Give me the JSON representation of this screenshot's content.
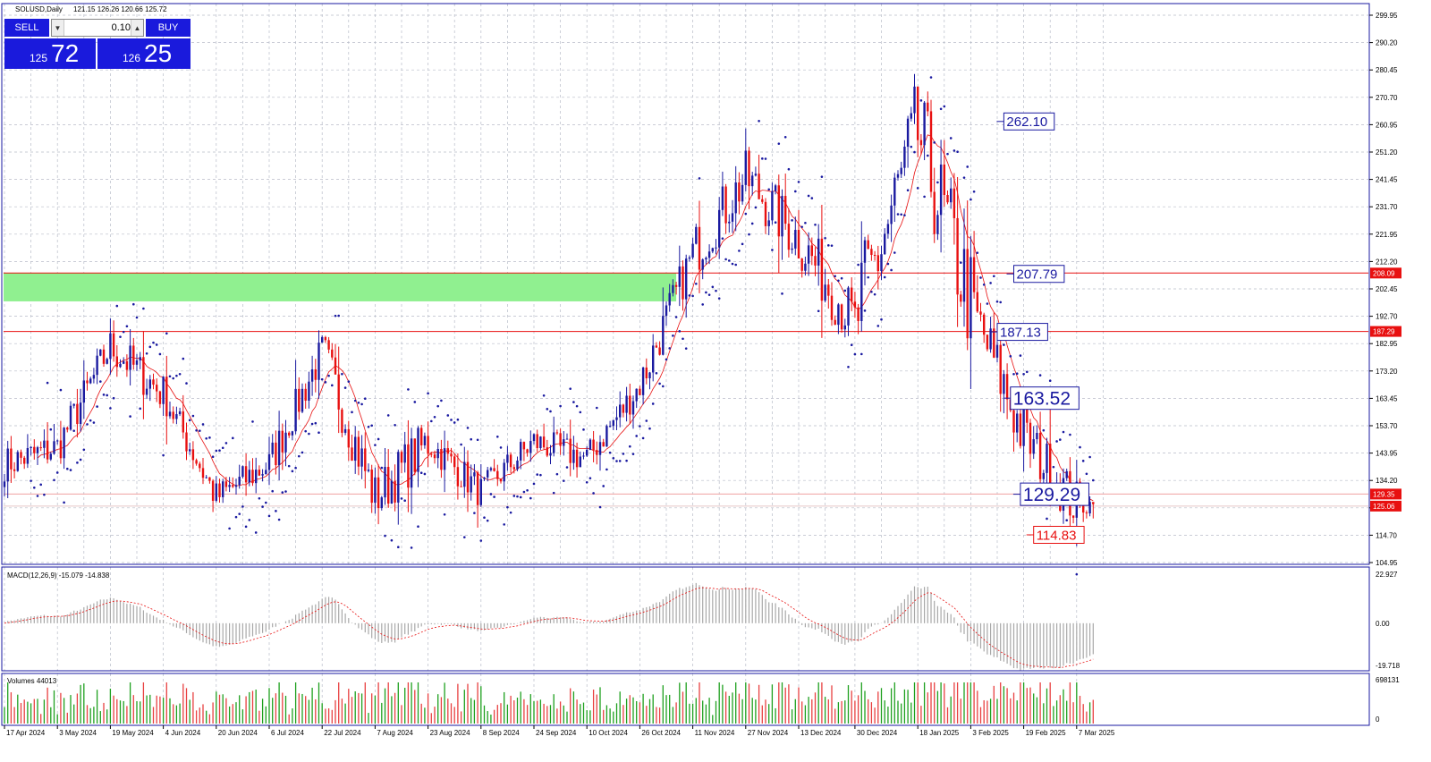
{
  "header": {
    "symbol_info": "SOLUSD,Daily",
    "ohlc": "121.15 126.26 120.66 125.72"
  },
  "trade_panel": {
    "sell_label": "SELL",
    "buy_label": "BUY",
    "lot": "0.10",
    "sell_price_small": "125",
    "sell_price_big": "72",
    "buy_price_small": "126",
    "buy_price_big": "25"
  },
  "price_axis": {
    "ticks": [
      "299.95",
      "290.20",
      "280.45",
      "270.70",
      "260.95",
      "251.20",
      "241.45",
      "231.70",
      "221.95",
      "212.20",
      "202.45",
      "192.70",
      "182.95",
      "173.20",
      "163.45",
      "153.70",
      "143.95",
      "134.20",
      "124.45",
      "114.70",
      "104.95"
    ],
    "badges": [
      {
        "value": 208.09,
        "label": "208.09"
      },
      {
        "value": 187.29,
        "label": "187.29"
      },
      {
        "value": 129.35,
        "label": "129.35"
      },
      {
        "value": 125.06,
        "label": "125.06"
      }
    ]
  },
  "levels": [
    {
      "value": 208.09,
      "color": "#e81010"
    },
    {
      "value": 187.29,
      "color": "#e81010"
    },
    {
      "value": 129.35,
      "color": "#f0a0a0"
    },
    {
      "value": 125.06,
      "color": "#e8c8c8"
    }
  ],
  "zone": {
    "top": 208.09,
    "bottom": 198.0,
    "from": "17 Apr 2024",
    "to": "6 Nov 2024",
    "color": "#90f090"
  },
  "annotations": [
    {
      "label": "262.10",
      "value": 262.1,
      "date": "13 Feb 2025",
      "size": "medium",
      "color": "#1a1aa0"
    },
    {
      "label": "207.79",
      "value": 207.79,
      "date": "16 Feb 2025",
      "size": "medium",
      "color": "#1a1aa0"
    },
    {
      "label": "187.13",
      "value": 187.13,
      "date": "11 Feb 2025",
      "size": "medium",
      "color": "#1a1aa0"
    },
    {
      "label": "163.52",
      "value": 163.52,
      "date": "15 Feb 2025",
      "size": "large",
      "color": "#1a1aa0"
    },
    {
      "label": "129.29",
      "value": 129.29,
      "date": "18 Feb 2025",
      "size": "large",
      "color": "#1a1aa0"
    },
    {
      "label": "114.83",
      "value": 114.83,
      "date": "22 Feb 2025",
      "size": "medium",
      "color": "#e81010"
    }
  ],
  "time_axis": {
    "labels": [
      "17 Apr 2024",
      "3 May 2024",
      "19 May 2024",
      "4 Jun 2024",
      "20 Jun 2024",
      "6 Jul 2024",
      "22 Jul 2024",
      "7 Aug 2024",
      "23 Aug 2024",
      "8 Sep 2024",
      "24 Sep 2024",
      "10 Oct 2024",
      "26 Oct 2024",
      "11 Nov 2024",
      "27 Nov 2024",
      "13 Dec 2024",
      "30 Dec 2024",
      "18 Jan 2025",
      "3 Feb 2025",
      "19 Feb 2025",
      "7 Mar 2025"
    ]
  },
  "macd": {
    "title": "MACD(12,26,9) -15.079 -14.838",
    "ticks": [
      "22.927",
      "0.00",
      "-19.718"
    ],
    "range": [
      -19.718,
      22.927
    ]
  },
  "volume": {
    "title": "Volumes 44013",
    "ticks": [
      "698131",
      "0"
    ],
    "max": 698131
  },
  "colors": {
    "bull": "#1a1aa0",
    "bear": "#e81010",
    "sar": "#1a1aa0",
    "ma": "#e81010",
    "grid": "#b8bcc8",
    "panel_border": "#1a1aa0"
  },
  "chart_data": {
    "type": "candlestick",
    "symbol": "SOLUSD",
    "timeframe": "Daily",
    "price_range": [
      104.95,
      299.95
    ],
    "start_date": "17 Apr 2024",
    "x": [
      "17 Apr 2024",
      "3 May 2024",
      "19 May 2024",
      "4 Jun 2024",
      "20 Jun 2024",
      "6 Jul 2024",
      "22 Jul 2024",
      "7 Aug 2024",
      "23 Aug 2024",
      "8 Sep 2024",
      "24 Sep 2024",
      "10 Oct 2024",
      "26 Oct 2024",
      "11 Nov 2024",
      "27 Nov 2024",
      "13 Dec 2024",
      "30 Dec 2024",
      "18 Jan 2025",
      "3 Feb 2025",
      "19 Feb 2025",
      "7 Mar 2025",
      "12 Mar 2025"
    ],
    "series": [
      {
        "name": "close",
        "values": [
          140,
          146,
          182,
          165,
          128,
          140,
          180,
          128,
          148,
          130,
          148,
          142,
          168,
          215,
          242,
          220,
          190,
          258,
          197,
          150,
          125,
          125.72
        ]
      },
      {
        "name": "high",
        "values": [
          152,
          155,
          189,
          175,
          140,
          148,
          191,
          152,
          162,
          142,
          157,
          156,
          183,
          230,
          263,
          238,
          217,
          296,
          210,
          178,
          135,
          126.26
        ]
      },
      {
        "name": "low",
        "values": [
          128,
          135,
          160,
          150,
          120,
          125,
          165,
          110,
          138,
          122,
          136,
          136,
          162,
          195,
          228,
          200,
          176,
          190,
          172,
          130,
          113,
          120.66
        ]
      }
    ]
  }
}
